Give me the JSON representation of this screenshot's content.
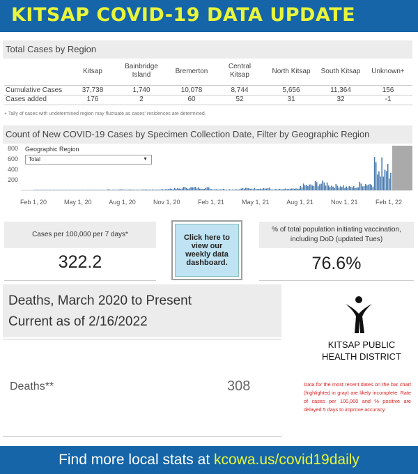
{
  "banner": {
    "title": "KITSAP COVID-19 DATA UPDATE"
  },
  "cases_by_region": {
    "header": "Total Cases by Region",
    "columns": [
      [
        "Kitsap",
        ""
      ],
      [
        "Bainbridge",
        "Island"
      ],
      [
        "Bremerton",
        ""
      ],
      [
        "Central",
        "Kitsap"
      ],
      [
        "North Kitsap",
        ""
      ],
      [
        "South Kitsap",
        ""
      ],
      [
        "Unknown+",
        ""
      ]
    ],
    "rows": [
      {
        "label": "Cumulative Cases",
        "values": [
          "37,738",
          "1,740",
          "10,078",
          "8,744",
          "5,656",
          "11,364",
          "156"
        ]
      },
      {
        "label": "Cases added",
        "values": [
          "176",
          "2",
          "60",
          "52",
          "31",
          "32",
          "-1"
        ]
      }
    ],
    "footnote": "+ Tally of cases with undetermined region may fluctuate as cases' residences are determined."
  },
  "chart": {
    "header": "Count of New COVID-19 Cases by Specimen Collection Date, Filter by Geographic Region",
    "filter_label": "Geographic Region",
    "filter_value": "Total"
  },
  "chart_data": {
    "type": "bar",
    "title": "Count of New COVID-19 Cases by Specimen Collection Date, Filter by Geographic Region",
    "xlabel": "",
    "ylabel": "",
    "x_ticks": [
      "Feb 1, 20",
      "May 1, 20",
      "Aug 1, 20",
      "Nov 1, 20",
      "Feb 1, 21",
      "May 1, 21",
      "Aug 1, 21",
      "Nov 1, 21",
      "Feb 1, 22"
    ],
    "y_ticks": [
      200,
      400,
      600,
      800
    ],
    "ylim": [
      0,
      850
    ],
    "grid": false,
    "incomplete_recent_dates_highlight": "gray",
    "series": [
      {
        "monthly_daily_levels": [
          {
            "month": "2020-02",
            "value": 1
          },
          {
            "month": "2020-03",
            "value": 5
          },
          {
            "month": "2020-04",
            "value": 6
          },
          {
            "month": "2020-05",
            "value": 4
          },
          {
            "month": "2020-06",
            "value": 6
          },
          {
            "month": "2020-07",
            "value": 14
          },
          {
            "month": "2020-08",
            "value": 12
          },
          {
            "month": "2020-09",
            "value": 11
          },
          {
            "month": "2020-10",
            "value": 16
          },
          {
            "month": "2020-11",
            "value": 30
          },
          {
            "month": "2020-12",
            "value": 50
          },
          {
            "month": "2021-01",
            "value": 45
          },
          {
            "month": "2021-02",
            "value": 22
          },
          {
            "month": "2021-03",
            "value": 18
          },
          {
            "month": "2021-04",
            "value": 35
          },
          {
            "month": "2021-05",
            "value": 38
          },
          {
            "month": "2021-06",
            "value": 18
          },
          {
            "month": "2021-07",
            "value": 25
          },
          {
            "month": "2021-08",
            "value": 90
          },
          {
            "month": "2021-09",
            "value": 130
          },
          {
            "month": "2021-10",
            "value": 85
          },
          {
            "month": "2021-11",
            "value": 60
          },
          {
            "month": "2021-12",
            "value": 120
          },
          {
            "month": "2022-01",
            "value": 700
          },
          {
            "month": "2022-02",
            "value": 300
          }
        ]
      }
    ]
  },
  "stats": {
    "cases_label": "Cases per 100,000 per 7 days*",
    "cases_value": "322.2",
    "dashboard_button": [
      "Click here to",
      "view our",
      "weekly data",
      "dashboard."
    ],
    "vax_label": [
      "% of total population initiating vaccination,",
      "including DoD (updated Tues)"
    ],
    "vax_value": "76.6%"
  },
  "deaths": {
    "title_line1": "Deaths, March 2020 to Present",
    "title_line2": "Current as of 2/16/2022",
    "label": "Deaths**",
    "value": "308"
  },
  "logo": {
    "line1": "KITSAP PUBLIC",
    "line2": "HEALTH DISTRICT"
  },
  "disclaimer": "Data for the most recent dates on the bar chart (highlighted in gray) are likely incomplete. Rate of cases per 100,000 and % positive are delayed 5 days to improve accuracy.",
  "footer": {
    "prefix": "Find more local stats at ",
    "link": "kcowa.us/covid19daily"
  },
  "colors": {
    "banner": "#1565a8",
    "banner_text": "#e8f53a",
    "bars": "#4a7cb0",
    "incomplete": "#aaaaaa",
    "disclaimer": "#dd2222"
  }
}
